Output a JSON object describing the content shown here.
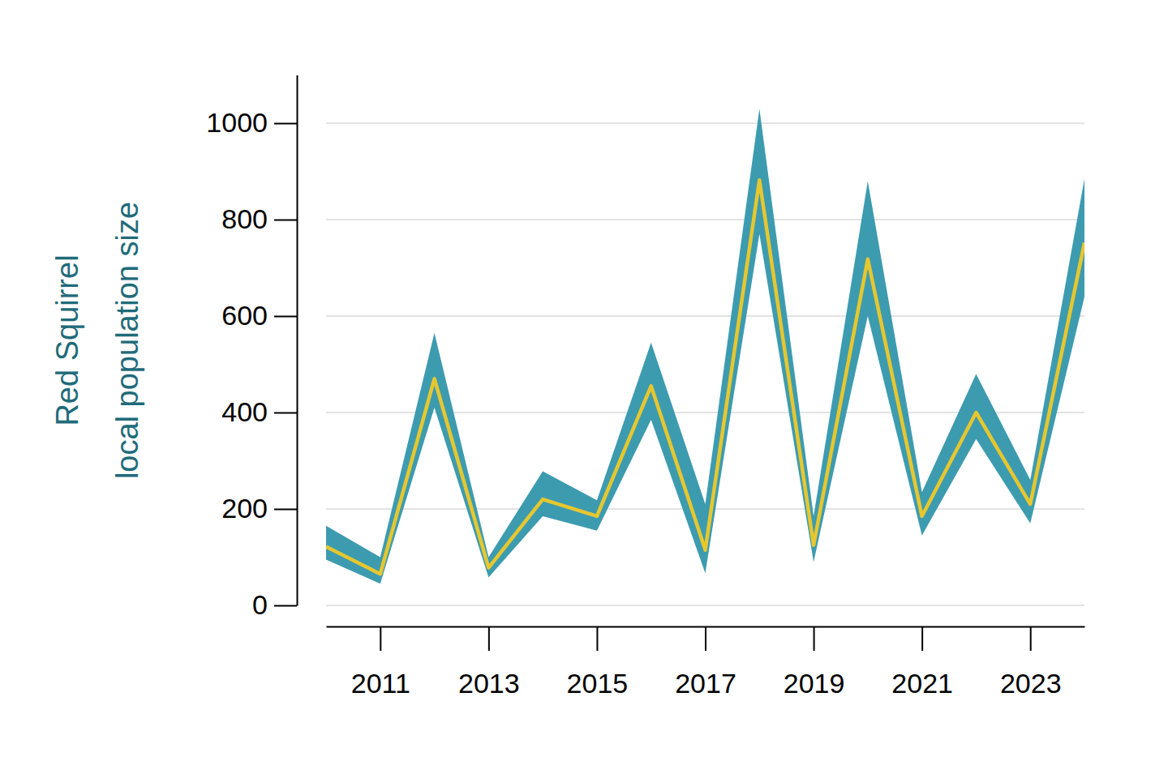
{
  "chart_data": {
    "type": "line",
    "ylabel": [
      "Red Squirrel",
      "local population size"
    ],
    "x": [
      2010,
      2011,
      2012,
      2013,
      2014,
      2015,
      2016,
      2017,
      2018,
      2019,
      2020,
      2021,
      2022,
      2023,
      2024
    ],
    "series": [
      {
        "type": "area",
        "color": "#3d9bb0",
        "values": [
          165,
          100,
          565,
          100,
          278,
          218,
          545,
          210,
          1030,
          185,
          880,
          235,
          480,
          260,
          885
        ],
        "lower": [
          95,
          45,
          410,
          58,
          185,
          155,
          385,
          67,
          770,
          90,
          600,
          145,
          345,
          170,
          640
        ]
      },
      {
        "type": "line",
        "color": "#e6c72f",
        "values": [
          122,
          65,
          470,
          78,
          220,
          185,
          455,
          115,
          882,
          125,
          718,
          185,
          400,
          210,
          752
        ]
      }
    ],
    "xlim": [
      2010,
      2024
    ],
    "xticks": [
      2011,
      2013,
      2015,
      2017,
      2019,
      2021,
      2023
    ],
    "ylim": [
      0,
      1100
    ],
    "yticks": [
      0,
      200,
      400,
      600,
      800,
      1000
    ],
    "grid": true
  }
}
